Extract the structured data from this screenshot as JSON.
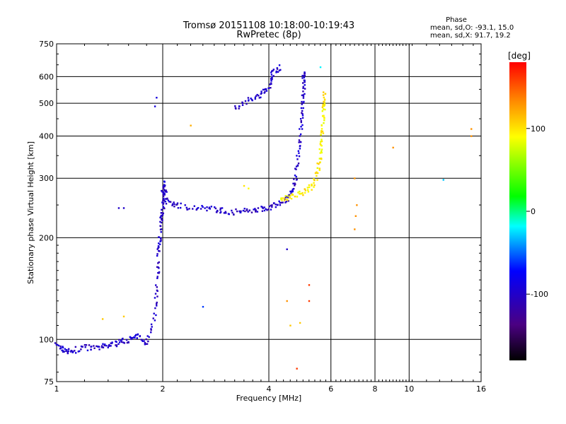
{
  "chart_data": {
    "type": "scatter",
    "title": "Tromsø 20151108 10:18:00-10:19:43",
    "subtitle": "RwPretec (8p)",
    "xlabel": "Frequency [MHz]",
    "ylabel": "Stationary phase Virtual Height [km]",
    "x_scale": "log",
    "y_scale": "log",
    "xlim": [
      1,
      16
    ],
    "ylim": [
      75,
      750
    ],
    "x_ticks": [
      1,
      2,
      4,
      6,
      8,
      10,
      16
    ],
    "x_tick_labels": [
      "1",
      "2",
      "4",
      "6",
      "8",
      "10",
      "16"
    ],
    "y_ticks": [
      75,
      100,
      200,
      300,
      400,
      500,
      600,
      750
    ],
    "y_tick_labels": [
      "75",
      "100",
      "200",
      "300",
      "400",
      "500",
      "600",
      "750"
    ],
    "grid": true,
    "phase_stats": {
      "title": "Phase",
      "line_o": "mean, sd,O: -93.1, 15.0",
      "line_x": "mean, sd,X:  91.7, 19.2"
    },
    "colorbar": {
      "label": "[deg]",
      "range": [
        -180,
        180
      ],
      "ticks": [
        100,
        0,
        -100
      ],
      "tick_labels": [
        "100",
        "0",
        "-100"
      ]
    },
    "traces": [
      {
        "phase_deg": -100,
        "points": [
          [
            1.0,
            96
          ],
          [
            1.05,
            93
          ],
          [
            1.1,
            92
          ],
          [
            1.2,
            95
          ],
          [
            1.3,
            94
          ],
          [
            1.4,
            96
          ],
          [
            1.5,
            98
          ],
          [
            1.6,
            100
          ],
          [
            1.7,
            102
          ],
          [
            1.8,
            98
          ],
          [
            1.9,
            120
          ],
          [
            1.93,
            150
          ],
          [
            1.95,
            180
          ],
          [
            1.96,
            200
          ],
          [
            1.98,
            230
          ],
          [
            2.0,
            245
          ],
          [
            2.0,
            270
          ],
          [
            2.02,
            290
          ],
          [
            2.05,
            255
          ],
          [
            2.2,
            250
          ],
          [
            2.5,
            245
          ],
          [
            2.8,
            243
          ],
          [
            3.0,
            240
          ],
          [
            3.3,
            238
          ],
          [
            3.6,
            242
          ],
          [
            3.9,
            245
          ],
          [
            4.2,
            250
          ],
          [
            4.5,
            262
          ],
          [
            4.7,
            280
          ],
          [
            4.8,
            320
          ],
          [
            4.9,
            380
          ],
          [
            4.95,
            450
          ],
          [
            5.0,
            520
          ],
          [
            5.02,
            580
          ],
          [
            5.03,
            620
          ]
        ]
      },
      {
        "phase_deg": 95,
        "points": [
          [
            4.3,
            260
          ],
          [
            4.6,
            265
          ],
          [
            5.0,
            272
          ],
          [
            5.3,
            285
          ],
          [
            5.5,
            310
          ],
          [
            5.6,
            350
          ],
          [
            5.65,
            400
          ],
          [
            5.7,
            450
          ],
          [
            5.72,
            500
          ],
          [
            5.73,
            540
          ]
        ]
      },
      {
        "phase_deg": -100,
        "points": [
          [
            3.2,
            480
          ],
          [
            3.5,
            510
          ],
          [
            3.8,
            530
          ],
          [
            4.0,
            560
          ],
          [
            4.1,
            620
          ],
          [
            4.3,
            640
          ]
        ]
      }
    ],
    "scatter_points": [
      {
        "x": 1.9,
        "y": 490,
        "phase_deg": -90
      },
      {
        "x": 1.92,
        "y": 520,
        "phase_deg": -90
      },
      {
        "x": 1.5,
        "y": 245,
        "phase_deg": -100
      },
      {
        "x": 1.55,
        "y": 245,
        "phase_deg": -100
      },
      {
        "x": 2.4,
        "y": 430,
        "phase_deg": 120
      },
      {
        "x": 1.35,
        "y": 115,
        "phase_deg": 110
      },
      {
        "x": 1.55,
        "y": 117,
        "phase_deg": 110
      },
      {
        "x": 2.6,
        "y": 125,
        "phase_deg": -60
      },
      {
        "x": 4.5,
        "y": 185,
        "phase_deg": -100
      },
      {
        "x": 4.5,
        "y": 130,
        "phase_deg": 130
      },
      {
        "x": 4.6,
        "y": 110,
        "phase_deg": 110
      },
      {
        "x": 4.9,
        "y": 112,
        "phase_deg": 110
      },
      {
        "x": 5.2,
        "y": 145,
        "phase_deg": 160
      },
      {
        "x": 5.2,
        "y": 130,
        "phase_deg": 160
      },
      {
        "x": 4.8,
        "y": 82,
        "phase_deg": 160
      },
      {
        "x": 7.0,
        "y": 300,
        "phase_deg": 130
      },
      {
        "x": 7.1,
        "y": 250,
        "phase_deg": 130
      },
      {
        "x": 7.05,
        "y": 232,
        "phase_deg": 130
      },
      {
        "x": 7.0,
        "y": 212,
        "phase_deg": 130
      },
      {
        "x": 9.0,
        "y": 370,
        "phase_deg": 130
      },
      {
        "x": 12.5,
        "y": 297,
        "phase_deg": -30
      },
      {
        "x": 15.0,
        "y": 400,
        "phase_deg": 130
      },
      {
        "x": 15.0,
        "y": 420,
        "phase_deg": 130
      },
      {
        "x": 5.6,
        "y": 640,
        "phase_deg": -20
      },
      {
        "x": 3.4,
        "y": 285,
        "phase_deg": 100
      },
      {
        "x": 3.5,
        "y": 280,
        "phase_deg": 90
      }
    ]
  }
}
